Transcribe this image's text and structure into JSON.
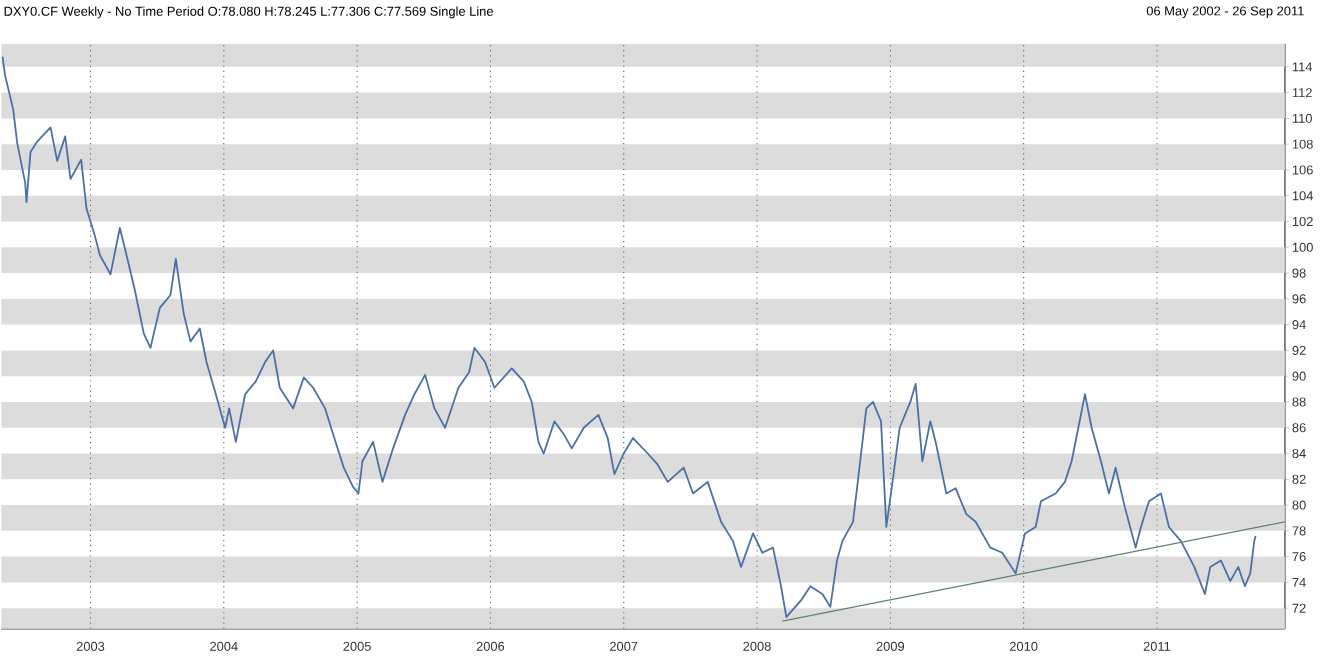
{
  "chart_data": {
    "type": "line",
    "title": "DXY0.CF Weekly -  No Time Period O:78.080 H:78.245 L:77.306 C:77.569 Single Line",
    "subtitle": "06 May 2002  -  26 Sep 2011",
    "xlim": [
      2002.33,
      2011.96
    ],
    "ylim": [
      70.4,
      115.8
    ],
    "xticks": [
      2003,
      2004,
      2005,
      2006,
      2007,
      2008,
      2009,
      2010,
      2011
    ],
    "yticks": [
      72,
      74,
      76,
      78,
      80,
      82,
      84,
      86,
      88,
      90,
      92,
      94,
      96,
      98,
      100,
      102,
      104,
      106,
      108,
      110,
      112,
      114
    ],
    "grid": "x",
    "bands": [
      {
        "axis": "y",
        "from": 70.4,
        "to": 72,
        "color": "#dcdcdc"
      },
      {
        "axis": "y",
        "from": 74,
        "to": 76,
        "color": "#dcdcdc"
      },
      {
        "axis": "y",
        "from": 78,
        "to": 80,
        "color": "#dcdcdc"
      },
      {
        "axis": "y",
        "from": 82,
        "to": 84,
        "color": "#dcdcdc"
      },
      {
        "axis": "y",
        "from": 86,
        "to": 88,
        "color": "#dcdcdc"
      },
      {
        "axis": "y",
        "from": 90,
        "to": 92,
        "color": "#dcdcdc"
      },
      {
        "axis": "y",
        "from": 94,
        "to": 96,
        "color": "#dcdcdc"
      },
      {
        "axis": "y",
        "from": 98,
        "to": 100,
        "color": "#dcdcdc"
      },
      {
        "axis": "y",
        "from": 102,
        "to": 104,
        "color": "#dcdcdc"
      },
      {
        "axis": "y",
        "from": 106,
        "to": 108,
        "color": "#dcdcdc"
      },
      {
        "axis": "y",
        "from": 110,
        "to": 112,
        "color": "#dcdcdc"
      },
      {
        "axis": "y",
        "from": 114,
        "to": 115.8,
        "color": "#dcdcdc"
      }
    ],
    "series": [
      {
        "color": "#4a70a5",
        "x": [
          2002.34,
          2002.36,
          2002.42,
          2002.45,
          2002.51,
          2002.52,
          2002.55,
          2002.6,
          2002.7,
          2002.75,
          2002.81,
          2002.85,
          2002.93,
          2002.97,
          2003.03,
          2003.07,
          2003.15,
          2003.22,
          2003.27,
          2003.33,
          2003.4,
          2003.45,
          2003.52,
          2003.6,
          2003.64,
          2003.7,
          2003.75,
          2003.82,
          2003.87,
          2003.94,
          2004.01,
          2004.04,
          2004.09,
          2004.16,
          2004.24,
          2004.31,
          2004.37,
          2004.42,
          2004.52,
          2004.6,
          2004.67,
          2004.76,
          2004.82,
          2004.9,
          2004.97,
          2005.01,
          2005.04,
          2005.12,
          2005.19,
          2005.27,
          2005.36,
          2005.43,
          2005.51,
          2005.58,
          2005.66,
          2005.76,
          2005.84,
          2005.88,
          2005.96,
          2006.03,
          2006.16,
          2006.25,
          2006.31,
          2006.36,
          2006.4,
          2006.48,
          2006.55,
          2006.61,
          2006.7,
          2006.81,
          2006.88,
          2006.93,
          2007.0,
          2007.07,
          2007.18,
          2007.25,
          2007.33,
          2007.45,
          2007.52,
          2007.63,
          2007.73,
          2007.82,
          2007.88,
          2007.97,
          2008.04,
          2008.12,
          2008.18,
          2008.22,
          2008.33,
          2008.4,
          2008.49,
          2008.55,
          2008.6,
          2008.64,
          2008.72,
          2008.75,
          2008.82,
          2008.87,
          2008.93,
          2008.97,
          2009.01,
          2009.07,
          2009.15,
          2009.19,
          2009.24,
          2009.3,
          2009.34,
          2009.42,
          2009.49,
          2009.57,
          2009.64,
          2009.75,
          2009.84,
          2009.94,
          2010.01,
          2010.09,
          2010.13,
          2010.24,
          2010.31,
          2010.36,
          2010.42,
          2010.46,
          2010.51,
          2010.58,
          2010.64,
          2010.69,
          2010.76,
          2010.84,
          2010.88,
          2010.94,
          2011.03,
          2011.09,
          2011.18,
          2011.28,
          2011.36,
          2011.4,
          2011.48,
          2011.55,
          2011.61,
          2011.66,
          2011.7,
          2011.73,
          2011.74
        ],
        "values": [
          114.8,
          113.3,
          110.7,
          108.1,
          105,
          103.5,
          107.4,
          108.2,
          109.3,
          106.7,
          108.6,
          105.3,
          106.8,
          103,
          101,
          99.4,
          97.9,
          101.5,
          99.4,
          96.8,
          93.3,
          92.2,
          95.3,
          96.3,
          99.1,
          94.8,
          92.7,
          93.7,
          91.1,
          88.6,
          86,
          87.5,
          84.9,
          88.6,
          89.6,
          91.1,
          92,
          89.1,
          87.5,
          89.9,
          89.1,
          87.5,
          85.5,
          82.9,
          81.4,
          80.9,
          83.4,
          84.9,
          81.8,
          84.4,
          87,
          88.6,
          90.1,
          87.5,
          86,
          89.1,
          90.3,
          92.2,
          91.1,
          89.1,
          90.6,
          89.6,
          88,
          84.9,
          84,
          86.5,
          85.5,
          84.4,
          86,
          87,
          85.2,
          82.4,
          84,
          85.2,
          84,
          83.2,
          81.8,
          82.9,
          80.9,
          81.8,
          78.7,
          77.2,
          75.2,
          77.8,
          76.3,
          76.7,
          73.7,
          71.3,
          72.6,
          73.7,
          73.1,
          72.1,
          75.7,
          77.2,
          78.7,
          81.3,
          87.5,
          88,
          86.5,
          78.3,
          81.3,
          86,
          88,
          89.4,
          83.4,
          86.5,
          84.9,
          80.9,
          81.3,
          79.3,
          78.7,
          76.7,
          76.3,
          74.7,
          77.8,
          78.3,
          80.3,
          80.9,
          81.8,
          83.4,
          86.5,
          88.6,
          86,
          83.4,
          80.9,
          82.9,
          79.8,
          76.7,
          78.3,
          80.3,
          80.9,
          78.3,
          77.2,
          75.2,
          73.1,
          75.2,
          75.7,
          74.1,
          75.2,
          73.7,
          74.7,
          77.2,
          77.6
        ]
      },
      {
        "color": "#5f7f70",
        "x": [
          2008.19,
          2011.96
        ],
        "values": [
          71.0,
          78.7
        ]
      }
    ]
  }
}
